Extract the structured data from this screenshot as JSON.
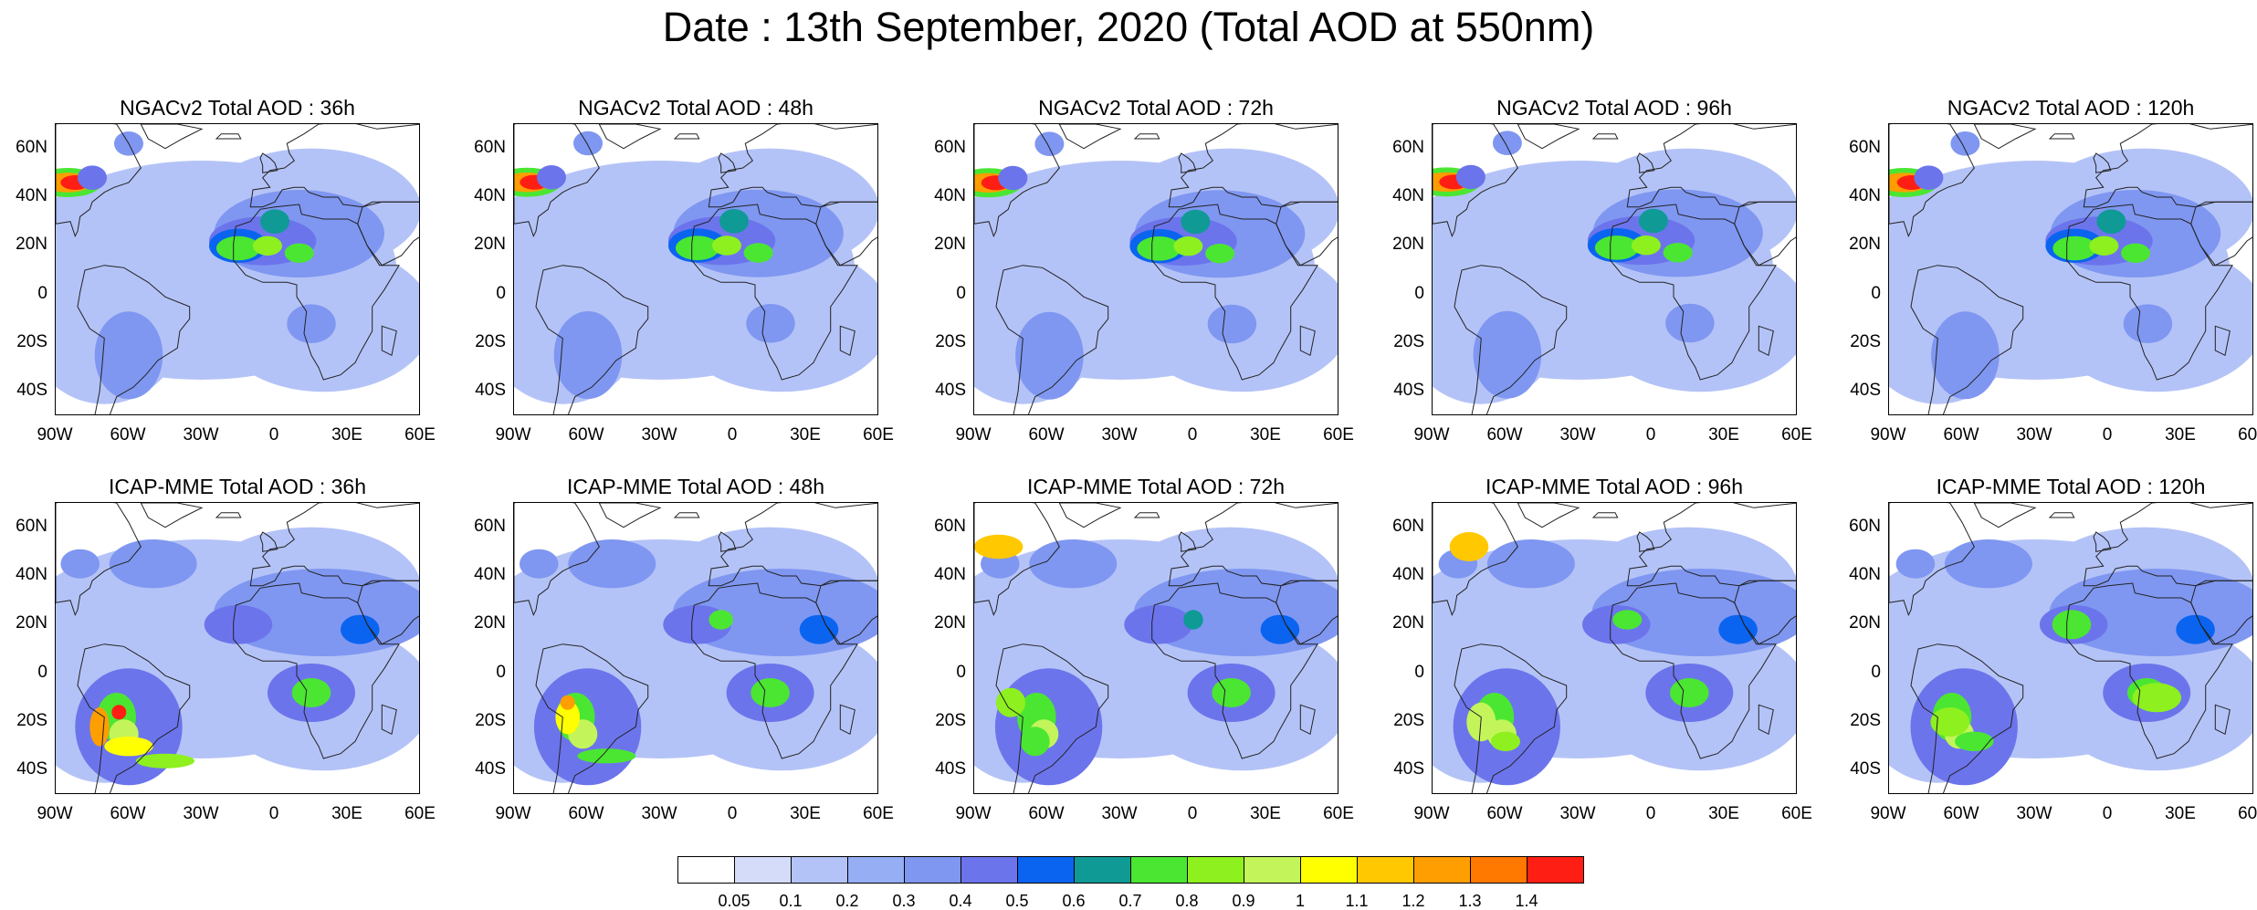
{
  "title": "Date : 13th September, 2020 (Total AOD at 550nm)",
  "lat_labels": [
    "60N",
    "40N",
    "20N",
    "0",
    "20S",
    "40S"
  ],
  "lon_labels": [
    "90W",
    "60W",
    "30W",
    "0",
    "30E",
    "60E"
  ],
  "panels": [
    {
      "title": "NGACv2 Total AOD : 36h",
      "model": "NGACv2",
      "lead": "36h"
    },
    {
      "title": "NGACv2 Total AOD : 48h",
      "model": "NGACv2",
      "lead": "48h"
    },
    {
      "title": "NGACv2 Total AOD : 72h",
      "model": "NGACv2",
      "lead": "72h"
    },
    {
      "title": "NGACv2 Total AOD : 96h",
      "model": "NGACv2",
      "lead": "96h"
    },
    {
      "title": "NGACv2 Total AOD : 120h",
      "model": "NGACv2",
      "lead": "120h"
    },
    {
      "title": "ICAP-MME Total AOD : 36h",
      "model": "ICAP-MME",
      "lead": "36h"
    },
    {
      "title": "ICAP-MME Total AOD : 48h",
      "model": "ICAP-MME",
      "lead": "48h"
    },
    {
      "title": "ICAP-MME Total AOD : 72h",
      "model": "ICAP-MME",
      "lead": "72h"
    },
    {
      "title": "ICAP-MME Total AOD : 96h",
      "model": "ICAP-MME",
      "lead": "96h"
    },
    {
      "title": "ICAP-MME Total AOD : 120h",
      "model": "ICAP-MME",
      "lead": "120h"
    }
  ],
  "colorbar": {
    "labels": [
      "0.05",
      "0.1",
      "0.2",
      "0.3",
      "0.4",
      "0.5",
      "0.6",
      "0.7",
      "0.8",
      "0.9",
      "1",
      "1.1",
      "1.2",
      "1.3",
      "1.4"
    ],
    "colors": [
      "#ffffff",
      "#d5dcfa",
      "#b4c3f7",
      "#96aef4",
      "#7f97f1",
      "#6c74ec",
      "#0a64f0",
      "#0f9a96",
      "#4be632",
      "#8ef01e",
      "#c3f55a",
      "#ffff00",
      "#ffc800",
      "#ff9e00",
      "#ff7800",
      "#ff1e14"
    ]
  }
}
